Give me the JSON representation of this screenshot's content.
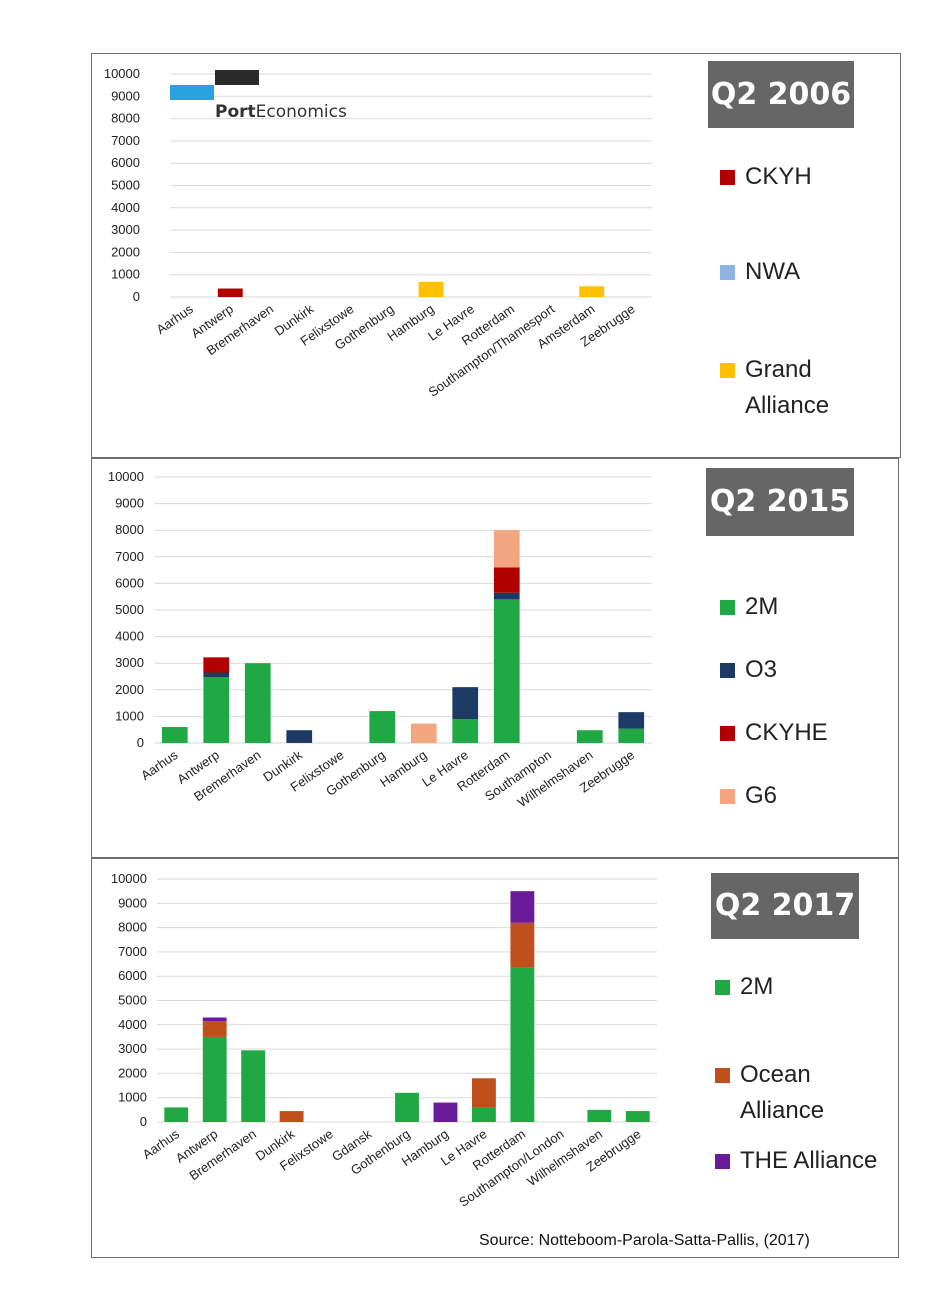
{
  "colors": {
    "CKYH": "#b00000",
    "NWA": "#8db4e2",
    "Grand Alliance": "#ffc000",
    "2M": "#1fa843",
    "O3": "#1c3a63",
    "CKYHE": "#b00000",
    "G6": "#f4a680",
    "Ocean Alliance": "#c0501b",
    "THE Alliance": "#6a1b9a"
  },
  "logo": {
    "brand_bold": "Port",
    "brand_rest": "Economics"
  },
  "source": "Source: Notteboom-Parola-Satta-Pallis, (2017)",
  "chart_data": [
    {
      "type": "bar",
      "stacked": true,
      "title": "Q2 2006",
      "ylim": [
        0,
        10000
      ],
      "yticks": [
        0,
        1000,
        2000,
        3000,
        4000,
        5000,
        6000,
        7000,
        8000,
        9000,
        10000
      ],
      "grid": true,
      "legend_position": "right",
      "categories": [
        "Aarhus",
        "Antwerp",
        "Bremerhaven",
        "Dunkirk",
        "Felixstowe",
        "Gothenburg",
        "Hamburg",
        "Le Havre",
        "Rotterdam",
        "Southampton/Thamesport",
        "Amsterdam",
        "Zeebrugge"
      ],
      "series": [
        {
          "name": "CKYH",
          "values": [
            0,
            380,
            0,
            0,
            0,
            0,
            0,
            0,
            0,
            0,
            0,
            0
          ]
        },
        {
          "name": "NWA",
          "values": [
            0,
            0,
            0,
            0,
            0,
            0,
            0,
            0,
            0,
            0,
            0,
            0
          ]
        },
        {
          "name": "Grand Alliance",
          "values": [
            0,
            0,
            0,
            0,
            0,
            0,
            680,
            0,
            0,
            0,
            480,
            0
          ]
        }
      ],
      "legend_labels": [
        "CKYH",
        "NWA",
        "Grand\nAlliance"
      ]
    },
    {
      "type": "bar",
      "stacked": true,
      "title": "Q2 2015",
      "ylim": [
        0,
        10000
      ],
      "yticks": [
        0,
        1000,
        2000,
        3000,
        4000,
        5000,
        6000,
        7000,
        8000,
        9000,
        10000
      ],
      "grid": true,
      "legend_position": "right",
      "categories": [
        "Aarhus",
        "Antwerp",
        "Bremerhaven",
        "Dunkirk",
        "Felixstowe",
        "Gothenburg",
        "Hamburg",
        "Le Havre",
        "Rotterdam",
        "Southampton",
        "Wilhelmshaven",
        "Zeebrugge"
      ],
      "series": [
        {
          "name": "2M",
          "values": [
            600,
            2480,
            3000,
            0,
            0,
            1200,
            0,
            900,
            5400,
            0,
            480,
            540
          ]
        },
        {
          "name": "O3",
          "values": [
            0,
            170,
            0,
            480,
            0,
            0,
            0,
            1200,
            250,
            0,
            0,
            620
          ]
        },
        {
          "name": "CKYHE",
          "values": [
            0,
            570,
            0,
            0,
            0,
            0,
            0,
            0,
            950,
            0,
            0,
            0
          ]
        },
        {
          "name": "G6",
          "values": [
            0,
            0,
            0,
            0,
            0,
            0,
            730,
            0,
            1400,
            0,
            0,
            0
          ]
        }
      ],
      "legend_labels": [
        "2M",
        "O3",
        "CKYHE",
        "G6"
      ]
    },
    {
      "type": "bar",
      "stacked": true,
      "title": "Q2 2017",
      "ylim": [
        0,
        10000
      ],
      "yticks": [
        0,
        1000,
        2000,
        3000,
        4000,
        5000,
        6000,
        7000,
        8000,
        9000,
        10000
      ],
      "grid": true,
      "legend_position": "right",
      "categories": [
        "Aarhus",
        "Antwerp",
        "Bremerhaven",
        "Dunkirk",
        "Felixstowe",
        "Gdansk",
        "Gothenburg",
        "Hamburg",
        "Le Havre",
        "Rotterdam",
        "Southampton/London",
        "Wilhelmshaven",
        "Zeebrugge"
      ],
      "series": [
        {
          "name": "2M",
          "values": [
            600,
            3500,
            2950,
            0,
            0,
            0,
            1200,
            0,
            600,
            6350,
            0,
            500,
            450
          ]
        },
        {
          "name": "Ocean Alliance",
          "values": [
            0,
            650,
            0,
            450,
            0,
            0,
            0,
            0,
            1200,
            1850,
            0,
            0,
            0
          ]
        },
        {
          "name": "THE Alliance",
          "values": [
            0,
            150,
            0,
            0,
            0,
            0,
            0,
            800,
            0,
            1300,
            0,
            0,
            0
          ]
        }
      ],
      "legend_labels": [
        "2M",
        "Ocean\nAlliance",
        "THE Alliance"
      ]
    }
  ]
}
